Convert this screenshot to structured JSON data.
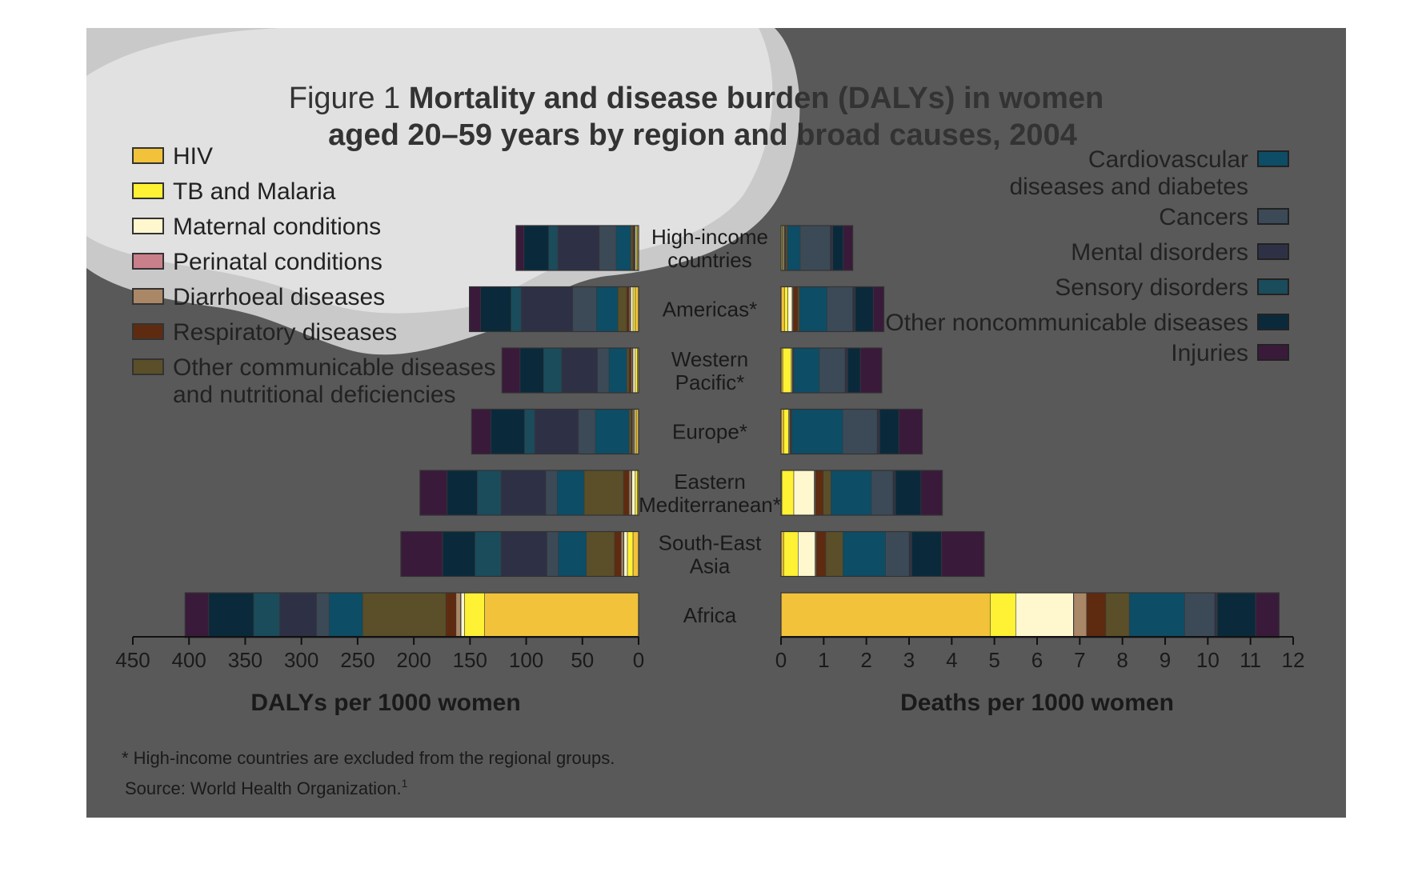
{
  "title": {
    "prefix": "Figure 1 ",
    "bold_line1": "Mortality and disease burden (DALYs) in women",
    "bold_line2": "aged 20–59 years by region and broad causes, 2004"
  },
  "footnote": "* High-income countries are excluded from the regional groups.",
  "source": "Source: World Health Organization.",
  "source_sup": "1",
  "colors": {
    "HIV": "#f2c23a",
    "TB and Malaria": "#fff133",
    "Maternal conditions": "#fff8cf",
    "Perinatal conditions": "#c9808a",
    "Diarrhoeal diseases": "#a98767",
    "Respiratory diseases": "#5f2b10",
    "Other communicable diseases and nutritional deficiencies": "#5a4f28",
    "Cardiovascular diseases and diabetes": "#0d4d66",
    "Cancers": "#3c4a57",
    "Mental disorders": "#2e3146",
    "Sensory disorders": "#1a4c5c",
    "Other noncommunicable diseases": "#0a2a3c",
    "Injuries": "#3a1a3a",
    "panel_background": "#595959",
    "cloud_overlay": "#ffffff"
  },
  "legend_left": [
    {
      "key": "HIV",
      "lines": [
        "HIV"
      ]
    },
    {
      "key": "TB and Malaria",
      "lines": [
        "TB and Malaria"
      ]
    },
    {
      "key": "Maternal conditions",
      "lines": [
        "Maternal conditions"
      ]
    },
    {
      "key": "Perinatal conditions",
      "lines": [
        "Perinatal conditions"
      ]
    },
    {
      "key": "Diarrhoeal diseases",
      "lines": [
        "Diarrhoeal diseases"
      ]
    },
    {
      "key": "Respiratory diseases",
      "lines": [
        "Respiratory diseases"
      ]
    },
    {
      "key": "Other communicable diseases and nutritional deficiencies",
      "lines": [
        "Other communicable diseases",
        "and nutritional deficiencies"
      ]
    }
  ],
  "legend_right": [
    {
      "key": "Cardiovascular diseases and diabetes",
      "lines": [
        "Cardiovascular",
        "diseases and diabetes"
      ]
    },
    {
      "key": "Cancers",
      "lines": [
        "Cancers"
      ]
    },
    {
      "key": "Mental disorders",
      "lines": [
        "Mental disorders"
      ]
    },
    {
      "key": "Sensory disorders",
      "lines": [
        "Sensory disorders"
      ]
    },
    {
      "key": "Other noncommunicable diseases",
      "lines": [
        "Other noncommunicable diseases"
      ]
    },
    {
      "key": "Injuries",
      "lines": [
        "Injuries"
      ]
    }
  ],
  "chart_data": [
    {
      "type": "bar",
      "orientation": "horizontal",
      "stacked": true,
      "direction": "right-to-left",
      "xlabel": "DALYs per 1000 women",
      "xlim": [
        0,
        450
      ],
      "xticks": [
        450,
        400,
        350,
        300,
        250,
        200,
        150,
        100,
        50,
        0
      ],
      "categories": [
        "High-income countries",
        "Americas*",
        "Western Pacific*",
        "Europe*",
        "Eastern Mediterranean*",
        "South-East Asia",
        "Africa"
      ],
      "category_labels": [
        [
          "High-income",
          "countries"
        ],
        [
          "Americas*"
        ],
        [
          "Western",
          "Pacific*"
        ],
        [
          "Europe*"
        ],
        [
          "Eastern",
          "Mediterranean*"
        ],
        [
          "South-East",
          "Asia"
        ],
        [
          "Africa"
        ]
      ],
      "series": [
        {
          "name": "HIV",
          "values": [
            1,
            3,
            1,
            2,
            1,
            5,
            137
          ]
        },
        {
          "name": "TB and Malaria",
          "values": [
            1,
            2,
            2,
            1,
            2,
            5,
            18
          ]
        },
        {
          "name": "Maternal conditions",
          "values": [
            1,
            2,
            2,
            1,
            3,
            3,
            3
          ]
        },
        {
          "name": "Perinatal conditions",
          "values": [
            0.5,
            0.5,
            0.5,
            0.5,
            0.5,
            0.5,
            0.5
          ]
        },
        {
          "name": "Diarrhoeal diseases",
          "values": [
            0.5,
            1,
            1,
            1,
            2,
            2,
            4
          ]
        },
        {
          "name": "Respiratory diseases",
          "values": [
            1,
            2,
            2,
            1,
            5,
            6,
            9
          ]
        },
        {
          "name": "Other communicable diseases and nutritional deficiencies",
          "values": [
            2,
            8,
            2,
            2,
            35,
            25,
            74
          ]
        },
        {
          "name": "Cardiovascular diseases and diabetes",
          "values": [
            13,
            19,
            16,
            30,
            24,
            25,
            30
          ]
        },
        {
          "name": "Cancers",
          "values": [
            15,
            21,
            10,
            15,
            10,
            10,
            11
          ]
        },
        {
          "name": "Mental disorders",
          "values": [
            37,
            46,
            32,
            39,
            40,
            41,
            33
          ]
        },
        {
          "name": "Sensory disorders",
          "values": [
            8,
            9,
            16,
            9,
            21,
            23,
            23
          ]
        },
        {
          "name": "Other noncommunicable diseases",
          "values": [
            22,
            27,
            21,
            30,
            27,
            29,
            40
          ]
        },
        {
          "name": "Injuries",
          "values": [
            7,
            10,
            16,
            17,
            24,
            37,
            21
          ]
        }
      ]
    },
    {
      "type": "bar",
      "orientation": "horizontal",
      "stacked": true,
      "direction": "left-to-right",
      "xlabel": "Deaths per 1000 women",
      "xlim": [
        0,
        12
      ],
      "xticks": [
        0,
        1,
        2,
        3,
        4,
        5,
        6,
        7,
        8,
        9,
        10,
        11,
        12
      ],
      "categories": [
        "High-income countries",
        "Americas*",
        "Western Pacific*",
        "Europe*",
        "Eastern Mediterranean*",
        "South-East Asia",
        "Africa"
      ],
      "series": [
        {
          "name": "HIV",
          "values": [
            0.03,
            0.08,
            0.04,
            0.06,
            0.02,
            0.06,
            4.9
          ]
        },
        {
          "name": "TB and Malaria",
          "values": [
            0.02,
            0.08,
            0.2,
            0.12,
            0.28,
            0.34,
            0.6
          ]
        },
        {
          "name": "Maternal conditions",
          "values": [
            0.02,
            0.1,
            0.02,
            0.02,
            0.48,
            0.4,
            1.35
          ]
        },
        {
          "name": "Perinatal conditions",
          "values": [
            0.01,
            0.01,
            0.01,
            0.01,
            0.01,
            0.01,
            0.01
          ]
        },
        {
          "name": "Diarrhoeal diseases",
          "values": [
            0.01,
            0.02,
            0.01,
            0.01,
            0.02,
            0.02,
            0.3
          ]
        },
        {
          "name": "Respiratory diseases",
          "values": [
            0.02,
            0.1,
            0.01,
            0.02,
            0.18,
            0.22,
            0.45
          ]
        },
        {
          "name": "Other communicable diseases and nutritional deficiencies",
          "values": [
            0.04,
            0.04,
            0.01,
            0.01,
            0.18,
            0.4,
            0.55
          ]
        },
        {
          "name": "Cardiovascular diseases and diabetes",
          "values": [
            0.3,
            0.65,
            0.6,
            1.2,
            0.95,
            1.0,
            1.3
          ]
        },
        {
          "name": "Cancers",
          "values": [
            0.7,
            0.6,
            0.6,
            0.8,
            0.5,
            0.55,
            0.7
          ]
        },
        {
          "name": "Mental disorders",
          "values": [
            0.05,
            0.05,
            0.05,
            0.05,
            0.05,
            0.05,
            0.05
          ]
        },
        {
          "name": "Sensory disorders",
          "values": [
            0.01,
            0.01,
            0.01,
            0.01,
            0.01,
            0.01,
            0.01
          ]
        },
        {
          "name": "Other noncommunicable diseases",
          "values": [
            0.25,
            0.42,
            0.3,
            0.45,
            0.6,
            0.7,
            0.9
          ]
        },
        {
          "name": "Injuries",
          "values": [
            0.22,
            0.25,
            0.5,
            0.55,
            0.5,
            1.0,
            0.55
          ]
        }
      ]
    }
  ]
}
